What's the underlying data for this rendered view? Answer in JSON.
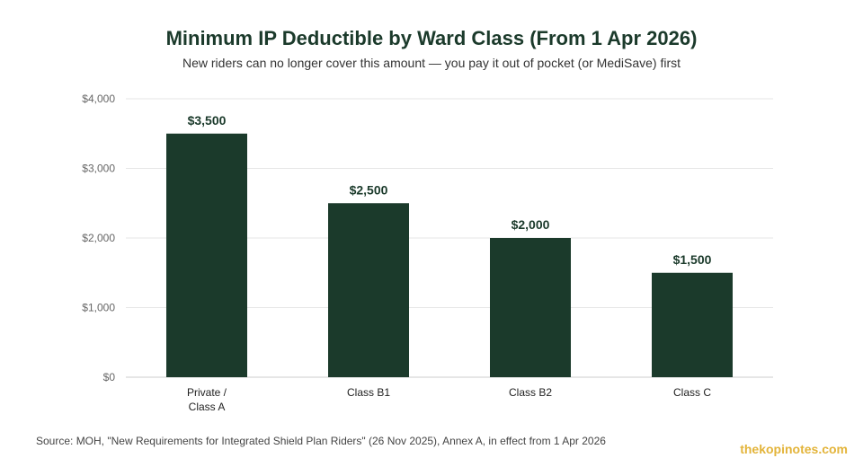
{
  "header": {
    "title": "Minimum IP Deductible by Ward Class (From 1 Apr 2026)",
    "subtitle": "New riders can no longer cover this amount — you pay it out of pocket (or MediSave) first"
  },
  "footer": {
    "source": "Source: MOH, \"New Requirements for Integrated Shield Plan Riders\" (26 Nov 2025), Annex A, in effect from 1 Apr 2026",
    "brand": "thekopinotes.com"
  },
  "colors": {
    "bar": "#1b3a2b",
    "title": "#1b3a2b",
    "brand": "#e3b43a",
    "grid": "#e6e6e6"
  },
  "chart_data": {
    "type": "bar",
    "categories": [
      [
        "Private /",
        "Class A"
      ],
      [
        "Class B1"
      ],
      [
        "Class B2"
      ],
      [
        "Class C"
      ]
    ],
    "values": [
      3500,
      2500,
      2000,
      1500
    ],
    "value_labels": [
      "$3,500",
      "$2,500",
      "$2,000",
      "$1,500"
    ],
    "ylim": [
      0,
      4000
    ],
    "yticks": [
      0,
      1000,
      2000,
      3000,
      4000
    ],
    "ytick_labels": [
      "$0",
      "$1,000",
      "$2,000",
      "$3,000",
      "$4,000"
    ],
    "xlabel": "",
    "ylabel": "",
    "grid": true,
    "legend": "none"
  }
}
